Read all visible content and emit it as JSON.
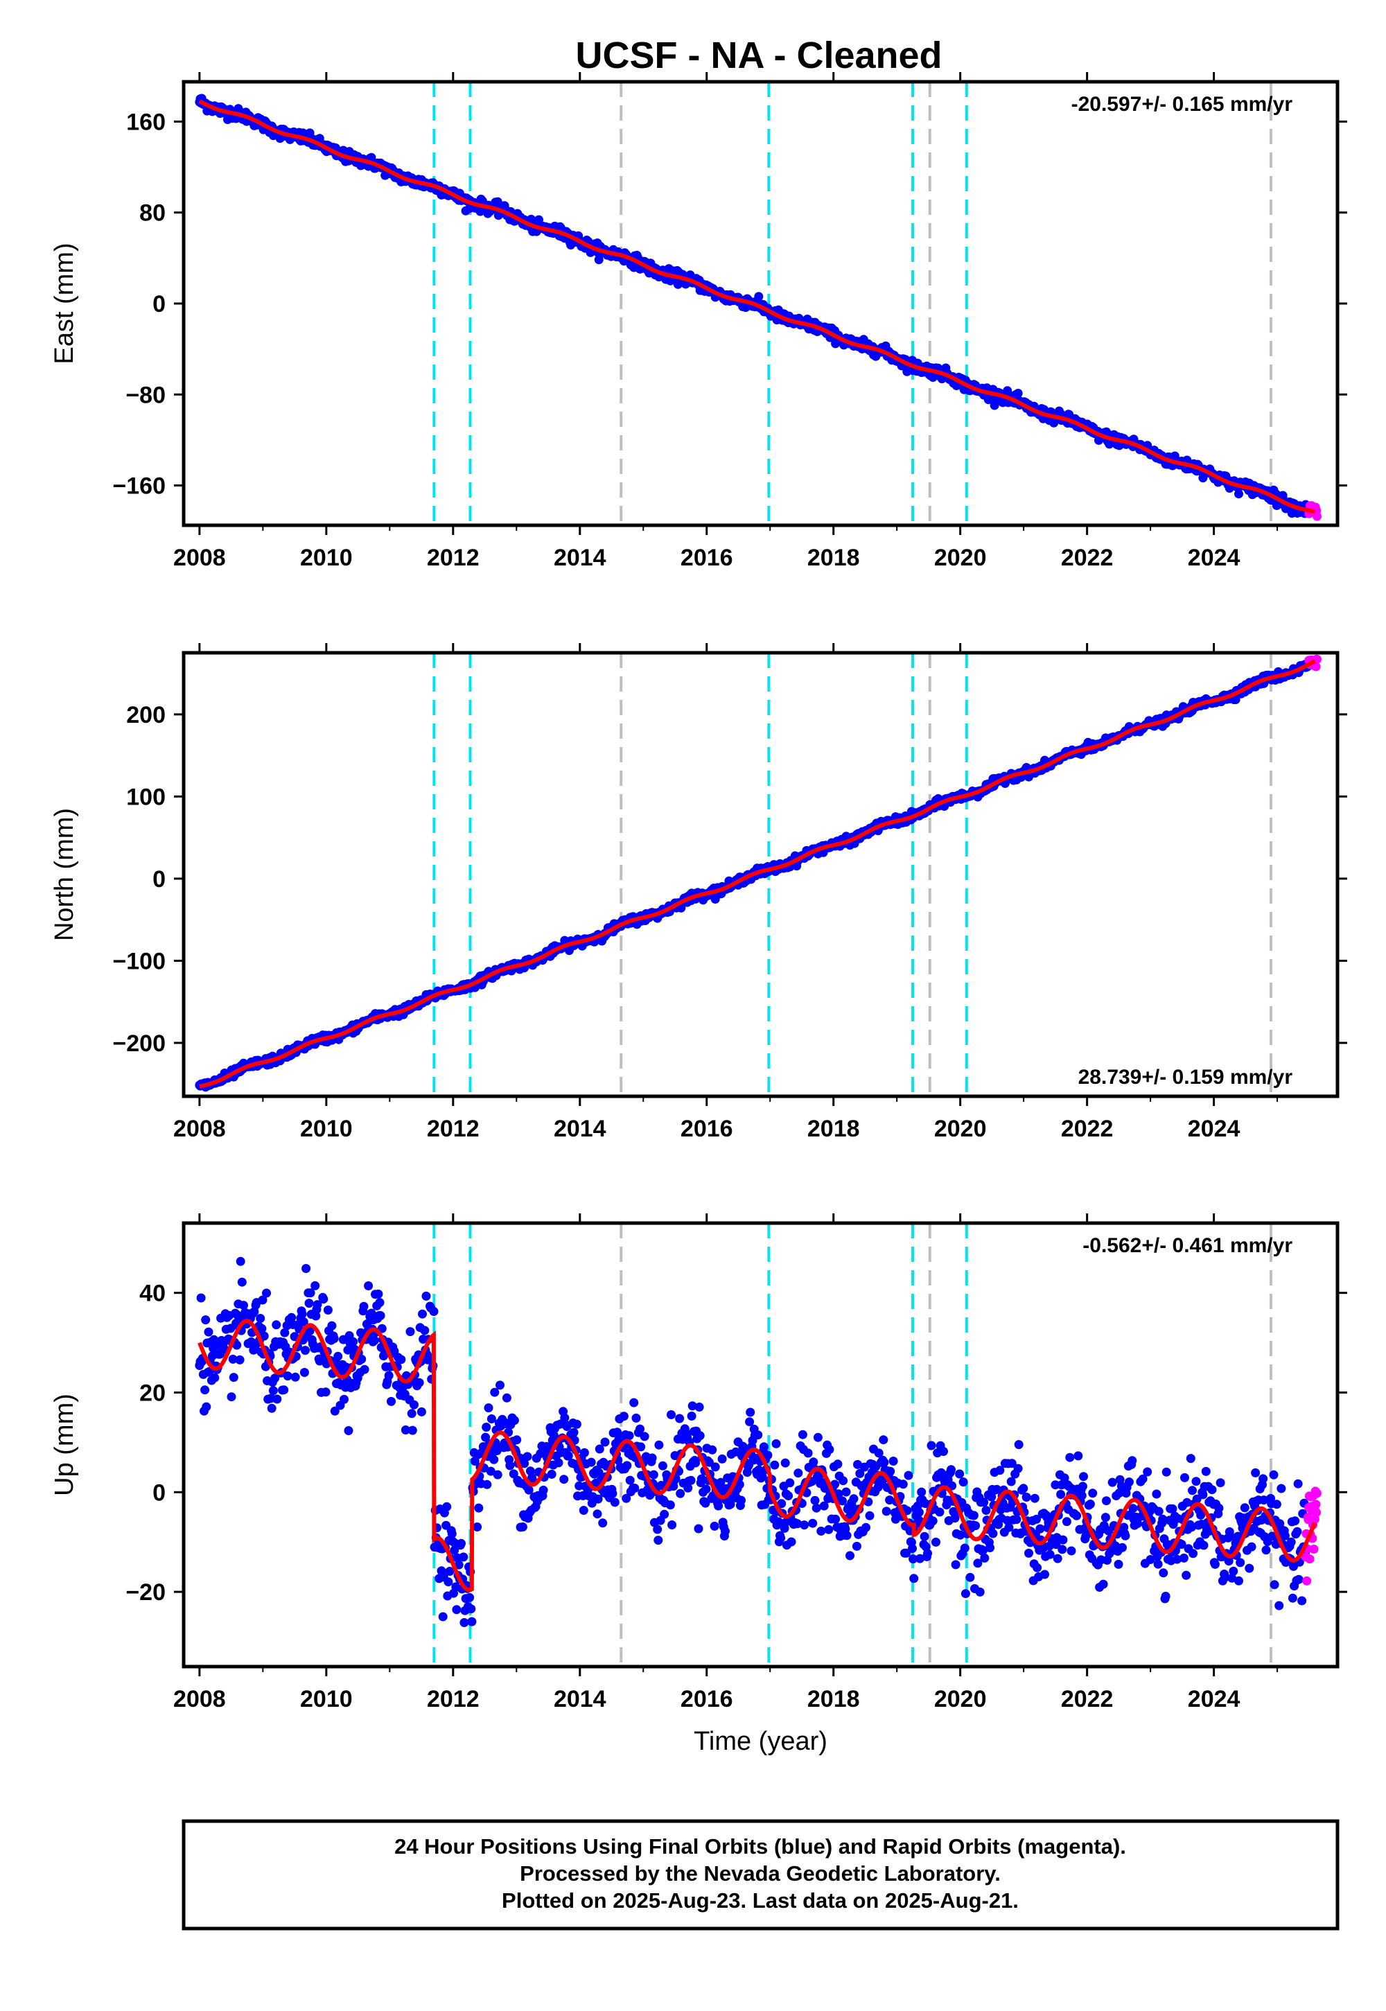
{
  "title": "UCSF  - NA - Cleaned",
  "colors": {
    "final_orbits": "#0000ff",
    "rapid_orbits": "#ff00ff",
    "model": "#ff0000",
    "event_cyan": "#00e5ee",
    "event_gray": "#bfbfbf",
    "frame": "#000000"
  },
  "chart_data": [
    {
      "type": "scatter",
      "panel": "east",
      "ylabel": "East (mm)",
      "xlabel": "",
      "rate_text": "-20.597+/- 0.165 mm/yr",
      "rate_position": "top-right",
      "xlim": [
        2007.75,
        2025.95
      ],
      "ylim": [
        -195,
        195
      ],
      "xticks": [
        2008,
        2010,
        2012,
        2014,
        2016,
        2018,
        2020,
        2022,
        2024
      ],
      "yticks": [
        160,
        80,
        0,
        -80,
        -160
      ],
      "ytick_labels": [
        "160",
        "80",
        "0",
        "−80",
        "−160"
      ],
      "trend": {
        "t0": 2008.0,
        "y0": 178,
        "t1": 2025.6,
        "y1": -184
      },
      "seasonal_amplitude": 1.5,
      "scatter_spread": 2.5,
      "rapid_segment": [
        2025.5,
        2025.63
      ],
      "steps": [],
      "grid": false
    },
    {
      "type": "scatter",
      "panel": "north",
      "ylabel": "North (mm)",
      "xlabel": "",
      "rate_text": "28.739+/- 0.159 mm/yr",
      "rate_position": "bottom-right",
      "xlim": [
        2007.75,
        2025.95
      ],
      "ylim": [
        -265,
        275
      ],
      "xticks": [
        2008,
        2010,
        2012,
        2014,
        2016,
        2018,
        2020,
        2022,
        2024
      ],
      "yticks": [
        200,
        100,
        0,
        -100,
        -200
      ],
      "ytick_labels": [
        "200",
        "100",
        "0",
        "−100",
        "−200"
      ],
      "trend": {
        "t0": 2008.0,
        "y0": -253,
        "t1": 2025.6,
        "y1": 264
      },
      "seasonal_amplitude": 2.0,
      "scatter_spread": 2.5,
      "rapid_segment": [
        2025.5,
        2025.63
      ],
      "steps": [],
      "grid": false
    },
    {
      "type": "scatter",
      "panel": "up",
      "ylabel": "Up (mm)",
      "xlabel": "Time (year)",
      "rate_text": "-0.562+/- 0.461 mm/yr",
      "rate_position": "top-right",
      "xlim": [
        2007.75,
        2025.95
      ],
      "ylim": [
        -35,
        54
      ],
      "xticks": [
        2008,
        2010,
        2012,
        2014,
        2016,
        2018,
        2020,
        2022,
        2024
      ],
      "yticks": [
        40,
        20,
        0,
        -20
      ],
      "ytick_labels": [
        "40",
        "20",
        "0",
        "−20"
      ],
      "trend": {
        "t0": 2008.0,
        "y0": 30,
        "t1": 2025.6,
        "y1": 15
      },
      "seasonal_amplitude": 5,
      "scatter_spread": 4.5,
      "rapid_segment": [
        2025.45,
        2025.63
      ],
      "steps": [
        {
          "t": 2011.7,
          "dy": -41
        },
        {
          "t": 2012.3,
          "dy": 22
        },
        {
          "t": 2017.0,
          "dy": -3
        },
        {
          "t": 2019.27,
          "dy": -2
        }
      ],
      "grid": false
    }
  ],
  "event_lines": [
    {
      "t": 2011.7,
      "kind": "cyan"
    },
    {
      "t": 2012.27,
      "kind": "cyan"
    },
    {
      "t": 2014.65,
      "kind": "gray"
    },
    {
      "t": 2016.98,
      "kind": "cyan"
    },
    {
      "t": 2019.25,
      "kind": "cyan"
    },
    {
      "t": 2019.52,
      "kind": "gray"
    },
    {
      "t": 2020.1,
      "kind": "cyan"
    },
    {
      "t": 2024.9,
      "kind": "gray"
    }
  ],
  "footer": {
    "line1": "24 Hour Positions Using Final Orbits (blue) and Rapid Orbits (magenta).",
    "line2": "Processed by the Nevada Geodetic Laboratory.",
    "line3": "Plotted on 2025-Aug-23. Last data on 2025-Aug-21."
  }
}
